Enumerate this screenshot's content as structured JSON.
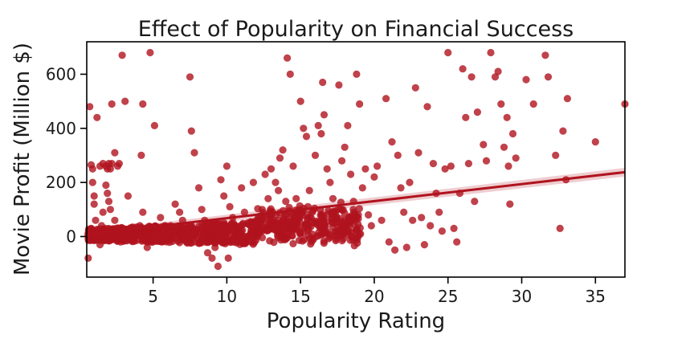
{
  "chart_data": {
    "type": "scatter",
    "title": "Effect of Popularity on Financial Success",
    "xlabel": "Popularity Rating",
    "ylabel": "Movie Profit (Million $)",
    "xlim": [
      0.5,
      37
    ],
    "ylim": [
      -150,
      720
    ],
    "xticks": [
      5,
      10,
      15,
      20,
      25,
      30,
      35
    ],
    "yticks": [
      0,
      200,
      400,
      600
    ],
    "grid": false,
    "legend": "none",
    "colors": {
      "points": "#b0131e",
      "regression": "#b0131e",
      "band": "#e7b8bc"
    },
    "regression": {
      "x": [
        0.5,
        37
      ],
      "y": [
        8,
        238
      ],
      "ci_lower": [
        -4,
        222
      ],
      "ci_upper": [
        20,
        254
      ]
    },
    "points": [
      [
        0.6,
        -80
      ],
      [
        0.7,
        480
      ],
      [
        0.8,
        265
      ],
      [
        0.9,
        250
      ],
      [
        0.9,
        200
      ],
      [
        1.0,
        150
      ],
      [
        1.0,
        120
      ],
      [
        1.1,
        60
      ],
      [
        0.8,
        30
      ],
      [
        1.2,
        10
      ],
      [
        1.3,
        -10
      ],
      [
        1.4,
        -30
      ],
      [
        1.5,
        40
      ],
      [
        1.6,
        90
      ],
      [
        1.2,
        440
      ],
      [
        1.4,
        260
      ],
      [
        1.6,
        270
      ],
      [
        1.8,
        260
      ],
      [
        2.0,
        270
      ],
      [
        2.2,
        270
      ],
      [
        1.8,
        190
      ],
      [
        1.9,
        160
      ],
      [
        2.0,
        130
      ],
      [
        2.1,
        100
      ],
      [
        2.4,
        60
      ],
      [
        2.5,
        30
      ],
      [
        2.6,
        0
      ],
      [
        2.8,
        -20
      ],
      [
        3.0,
        20
      ],
      [
        2.2,
        490
      ],
      [
        1.9,
        250
      ],
      [
        2.1,
        250
      ],
      [
        2.6,
        260
      ],
      [
        2.4,
        310
      ],
      [
        2.7,
        270
      ],
      [
        2.9,
        670
      ],
      [
        3.1,
        500
      ],
      [
        3.3,
        150
      ],
      [
        3.5,
        20
      ],
      [
        3.7,
        0
      ],
      [
        3.9,
        15
      ],
      [
        4.1,
        40
      ],
      [
        4.3,
        90
      ],
      [
        4.2,
        300
      ],
      [
        4.3,
        490
      ],
      [
        4.8,
        680
      ],
      [
        5.1,
        410
      ],
      [
        4.6,
        -40
      ],
      [
        4.9,
        10
      ],
      [
        5.3,
        30
      ],
      [
        5.5,
        70
      ],
      [
        5.8,
        20
      ],
      [
        6.0,
        -10
      ],
      [
        6.2,
        40
      ],
      [
        6.5,
        120
      ],
      [
        6.8,
        90
      ],
      [
        7.0,
        60
      ],
      [
        7.2,
        30
      ],
      [
        7.5,
        590
      ],
      [
        7.6,
        390
      ],
      [
        7.8,
        310
      ],
      [
        8.1,
        180
      ],
      [
        8.3,
        100
      ],
      [
        8.5,
        60
      ],
      [
        8.8,
        30
      ],
      [
        9.0,
        0
      ],
      [
        9.2,
        -40
      ],
      [
        9.4,
        -110
      ],
      [
        9.0,
        -80
      ],
      [
        8.7,
        -60
      ],
      [
        9.6,
        210
      ],
      [
        9.8,
        150
      ],
      [
        10.0,
        260
      ],
      [
        10.2,
        110
      ],
      [
        10.4,
        70
      ],
      [
        10.6,
        40
      ],
      [
        10.8,
        20
      ],
      [
        10.1,
        -80
      ],
      [
        11.0,
        180
      ],
      [
        11.2,
        90
      ],
      [
        11.4,
        50
      ],
      [
        11.6,
        10
      ],
      [
        11.8,
        200
      ],
      [
        12.0,
        30
      ],
      [
        12.2,
        60
      ],
      [
        12.4,
        100
      ],
      [
        12.6,
        230
      ],
      [
        12.8,
        140
      ],
      [
        13.0,
        80
      ],
      [
        13.2,
        50
      ],
      [
        13.0,
        250
      ],
      [
        13.3,
        200
      ],
      [
        13.5,
        170
      ],
      [
        13.6,
        290
      ],
      [
        13.8,
        320
      ],
      [
        14.0,
        130
      ],
      [
        14.1,
        660
      ],
      [
        14.3,
        600
      ],
      [
        14.5,
        260
      ],
      [
        14.7,
        140
      ],
      [
        15.0,
        500
      ],
      [
        15.2,
        400
      ],
      [
        15.4,
        370
      ],
      [
        15.6,
        170
      ],
      [
        15.8,
        90
      ],
      [
        16.0,
        300
      ],
      [
        16.2,
        410
      ],
      [
        16.4,
        380
      ],
      [
        16.5,
        570
      ],
      [
        16.6,
        450
      ],
      [
        16.8,
        250
      ],
      [
        17.0,
        200
      ],
      [
        17.2,
        140
      ],
      [
        17.4,
        70
      ],
      [
        17.6,
        560
      ],
      [
        17.8,
        280
      ],
      [
        18.0,
        330
      ],
      [
        18.2,
        410
      ],
      [
        18.4,
        230
      ],
      [
        18.6,
        130
      ],
      [
        18.8,
        600
      ],
      [
        19.0,
        490
      ],
      [
        19.2,
        180
      ],
      [
        19.4,
        250
      ],
      [
        19.6,
        80
      ],
      [
        19.8,
        40
      ],
      [
        20.0,
        220
      ],
      [
        20.2,
        260
      ],
      [
        20.5,
        60
      ],
      [
        20.8,
        510
      ],
      [
        21.0,
        -20
      ],
      [
        21.2,
        350
      ],
      [
        21.4,
        -50
      ],
      [
        21.6,
        300
      ],
      [
        21.8,
        180
      ],
      [
        22.0,
        90
      ],
      [
        22.2,
        -40
      ],
      [
        22.4,
        200
      ],
      [
        22.6,
        60
      ],
      [
        22.8,
        550
      ],
      [
        23.0,
        310
      ],
      [
        23.2,
        70
      ],
      [
        23.4,
        -30
      ],
      [
        23.6,
        480
      ],
      [
        23.8,
        40
      ],
      [
        24.0,
        270
      ],
      [
        24.2,
        160
      ],
      [
        24.4,
        90
      ],
      [
        24.6,
        20
      ],
      [
        24.8,
        250
      ],
      [
        25.0,
        680
      ],
      [
        25.2,
        260
      ],
      [
        25.4,
        30
      ],
      [
        25.6,
        -20
      ],
      [
        25.8,
        160
      ],
      [
        26.0,
        620
      ],
      [
        26.2,
        440
      ],
      [
        26.4,
        270
      ],
      [
        26.6,
        590
      ],
      [
        26.8,
        130
      ],
      [
        27.0,
        460
      ],
      [
        27.4,
        340
      ],
      [
        27.6,
        280
      ],
      [
        27.9,
        680
      ],
      [
        28.2,
        590
      ],
      [
        28.4,
        610
      ],
      [
        28.6,
        490
      ],
      [
        28.8,
        330
      ],
      [
        29.0,
        440
      ],
      [
        29.1,
        260
      ],
      [
        29.2,
        120
      ],
      [
        29.4,
        380
      ],
      [
        29.6,
        290
      ],
      [
        30.3,
        580
      ],
      [
        30.8,
        490
      ],
      [
        31.6,
        670
      ],
      [
        31.8,
        590
      ],
      [
        32.3,
        300
      ],
      [
        32.6,
        30
      ],
      [
        32.8,
        390
      ],
      [
        33.0,
        210
      ],
      [
        33.1,
        510
      ],
      [
        35.0,
        350
      ],
      [
        37.0,
        490
      ]
    ]
  }
}
